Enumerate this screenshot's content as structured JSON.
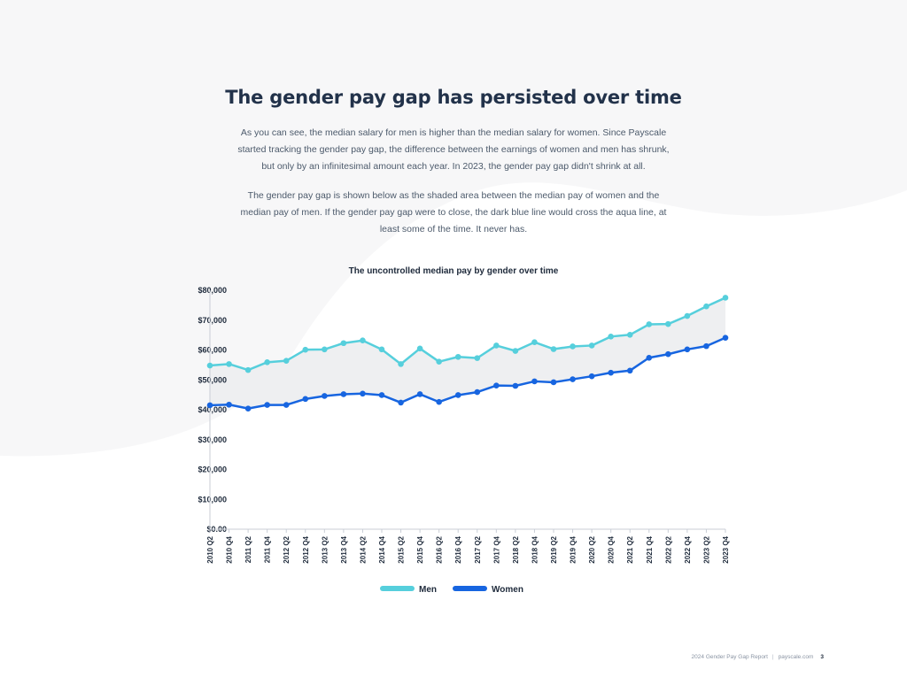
{
  "page": {
    "title": "The gender pay gap has persisted over time",
    "intro_paragraph_1": "As you can see, the median salary for men is higher than the median salary for women. Since Payscale started tracking the gender pay gap, the difference between the earnings of women and men has shrunk, but only by an infinitesimal amount each year. In 2023, the gender pay gap didn't shrink at all.",
    "intro_paragraph_2": "The gender pay gap is shown below as the shaded area between the median pay of women and the median pay of men. If the gender pay gap were to close, the dark blue line would cross the aqua line, at least some of the time. It never has."
  },
  "footer": {
    "report_name": "2024 Gender Pay Gap Report",
    "separator": "|",
    "site": "payscale.com",
    "page_number": "3"
  },
  "colors": {
    "men": "#56cfdc",
    "women": "#1765e0",
    "gap_fill": "#eeeff1",
    "background_shape": "#f7f7f8",
    "axis": "#c9ced6",
    "text_dark": "#1e2a3b"
  },
  "chart_data": {
    "type": "line",
    "title": "The uncontrolled median pay by gender over time",
    "xlabel": "",
    "ylabel": "",
    "categories": [
      "2010 Q2",
      "2010 Q4",
      "2011 Q2",
      "2011 Q4",
      "2012 Q2",
      "2012 Q4",
      "2013 Q2",
      "2013 Q4",
      "2014 Q2",
      "2014 Q4",
      "2015 Q2",
      "2015 Q4",
      "2016 Q2",
      "2016 Q4",
      "2017 Q2",
      "2017 Q4",
      "2018 Q2",
      "2018 Q4",
      "2019 Q2",
      "2019 Q4",
      "2020 Q2",
      "2020 Q4",
      "2021 Q2",
      "2021 Q4",
      "2022 Q2",
      "2022 Q4",
      "2023 Q2",
      "2023 Q4"
    ],
    "series": [
      {
        "name": "Men",
        "color": "#56cfdc",
        "values": [
          54800,
          55300,
          53300,
          55900,
          56400,
          60100,
          60200,
          62300,
          63200,
          60200,
          55300,
          60500,
          56100,
          57700,
          57300,
          61500,
          59700,
          62600,
          60300,
          61200,
          61500,
          64500,
          65100,
          68600,
          68700,
          71400,
          74600,
          77500
        ]
      },
      {
        "name": "Women",
        "color": "#1765e0",
        "values": [
          41500,
          41700,
          40400,
          41600,
          41600,
          43600,
          44600,
          45200,
          45400,
          44900,
          42400,
          45200,
          42600,
          44900,
          45900,
          48100,
          48000,
          49500,
          49200,
          50200,
          51200,
          52400,
          53100,
          57400,
          58600,
          60200,
          61300,
          64100
        ]
      }
    ],
    "ylim": [
      0,
      80000
    ],
    "yticks": [
      0,
      10000,
      20000,
      30000,
      40000,
      50000,
      60000,
      70000,
      80000
    ],
    "ytick_labels": [
      "$0.00",
      "$10,000",
      "$20,000",
      "$30,000",
      "$40,000",
      "$50,000",
      "$60,000",
      "$70,000",
      "$80,000"
    ],
    "gap_shaded": true,
    "grid": false,
    "legend_position": "bottom-center"
  }
}
